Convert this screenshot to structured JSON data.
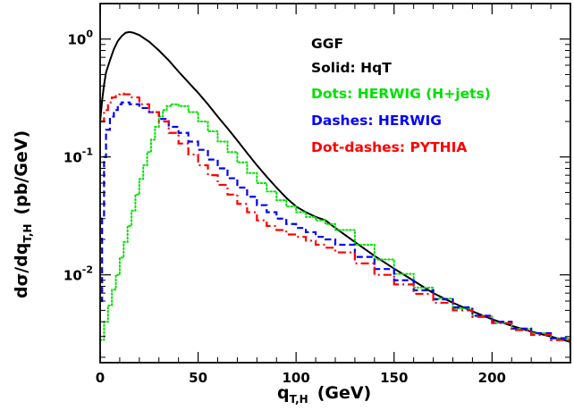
{
  "chart_data": {
    "type": "line",
    "title": "",
    "xlabel": "q",
    "xlabel_sub": "T,H",
    "xlabel_unit": "(GeV)",
    "ylabel": "dσ/dq",
    "ylabel_sub": "T,H",
    "ylabel_unit": "(pb/GeV)",
    "xlim": [
      0,
      240
    ],
    "ylim": [
      0.0018,
      2.0
    ],
    "yscale": "log",
    "grid": false,
    "x_ticks": [
      "0",
      "50",
      "100",
      "150",
      "200"
    ],
    "y_ticks": [
      {
        "base": "10",
        "exp": "0"
      },
      {
        "base": "10",
        "exp": "-1"
      },
      {
        "base": "10",
        "exp": "-2"
      }
    ],
    "legend_placement": "top-right",
    "legend": [
      {
        "text": "GGF",
        "color": "#000000"
      },
      {
        "text": "Solid: HqT",
        "color": "#000000"
      },
      {
        "text": "Dots: HERWIG (H+jets)",
        "color": "#00e000"
      },
      {
        "text": "Dashes: HERWIG",
        "color": "#0000ff"
      },
      {
        "text": "Dot-dashes: PYTHIA",
        "color": "#ff0000"
      }
    ],
    "series": [
      {
        "style": "solid",
        "color": "#000000",
        "points": [
          [
            0,
            0.2
          ],
          [
            1,
            0.3
          ],
          [
            2,
            0.41
          ],
          [
            3,
            0.52
          ],
          [
            5,
            0.66
          ],
          [
            7,
            0.82
          ],
          [
            9,
            0.96
          ],
          [
            11,
            1.06
          ],
          [
            13,
            1.13
          ],
          [
            15,
            1.15
          ],
          [
            17,
            1.13
          ],
          [
            20,
            1.08
          ],
          [
            25,
            0.95
          ],
          [
            30,
            0.8
          ],
          [
            35,
            0.66
          ],
          [
            40,
            0.53
          ],
          [
            45,
            0.43
          ],
          [
            50,
            0.35
          ],
          [
            55,
            0.28
          ],
          [
            60,
            0.22
          ],
          [
            65,
            0.175
          ],
          [
            70,
            0.138
          ],
          [
            75,
            0.108
          ],
          [
            80,
            0.085
          ],
          [
            85,
            0.068
          ],
          [
            90,
            0.055
          ],
          [
            95,
            0.045
          ],
          [
            100,
            0.038
          ],
          [
            105,
            0.034
          ],
          [
            110,
            0.031
          ],
          [
            115,
            0.029
          ],
          [
            120,
            0.025
          ],
          [
            130,
            0.019
          ],
          [
            140,
            0.0145
          ],
          [
            150,
            0.0113
          ],
          [
            160,
            0.0089
          ],
          [
            170,
            0.007
          ],
          [
            180,
            0.0058
          ],
          [
            190,
            0.0049
          ],
          [
            200,
            0.0042
          ],
          [
            210,
            0.0037
          ],
          [
            220,
            0.0033
          ],
          [
            230,
            0.003
          ],
          [
            240,
            0.0027
          ]
        ]
      },
      {
        "style": "dotted",
        "color": "#00e000",
        "points": [
          [
            0,
            0.0028
          ],
          [
            2,
            0.004
          ],
          [
            4,
            0.0055
          ],
          [
            6,
            0.0075
          ],
          [
            8,
            0.01
          ],
          [
            10,
            0.014
          ],
          [
            12,
            0.019
          ],
          [
            14,
            0.026
          ],
          [
            16,
            0.035
          ],
          [
            18,
            0.048
          ],
          [
            20,
            0.065
          ],
          [
            22,
            0.085
          ],
          [
            24,
            0.11
          ],
          [
            26,
            0.14
          ],
          [
            28,
            0.18
          ],
          [
            30,
            0.22
          ],
          [
            32,
            0.25
          ],
          [
            34,
            0.27
          ],
          [
            36,
            0.28
          ],
          [
            38,
            0.28
          ],
          [
            40,
            0.27
          ],
          [
            45,
            0.24
          ],
          [
            50,
            0.2
          ],
          [
            55,
            0.165
          ],
          [
            60,
            0.135
          ],
          [
            65,
            0.11
          ],
          [
            70,
            0.09
          ],
          [
            75,
            0.073
          ],
          [
            80,
            0.06
          ],
          [
            85,
            0.051
          ],
          [
            90,
            0.043
          ],
          [
            95,
            0.038
          ],
          [
            100,
            0.034
          ],
          [
            105,
            0.031
          ],
          [
            110,
            0.029
          ],
          [
            115,
            0.027
          ],
          [
            120,
            0.024
          ],
          [
            130,
            0.018
          ],
          [
            140,
            0.0135
          ],
          [
            150,
            0.0102
          ],
          [
            160,
            0.0078
          ],
          [
            170,
            0.0063
          ],
          [
            180,
            0.0052
          ],
          [
            190,
            0.0045
          ],
          [
            200,
            0.0039
          ],
          [
            210,
            0.0035
          ],
          [
            220,
            0.0032
          ],
          [
            230,
            0.0029
          ],
          [
            240,
            0.0026
          ]
        ]
      },
      {
        "style": "dashed",
        "color": "#0000ff",
        "points": [
          [
            0,
            0.006
          ],
          [
            1,
            0.03
          ],
          [
            2,
            0.1
          ],
          [
            3,
            0.17
          ],
          [
            5,
            0.22
          ],
          [
            7,
            0.25
          ],
          [
            9,
            0.28
          ],
          [
            11,
            0.29
          ],
          [
            13,
            0.29
          ],
          [
            15,
            0.28
          ],
          [
            20,
            0.26
          ],
          [
            25,
            0.24
          ],
          [
            30,
            0.21
          ],
          [
            35,
            0.18
          ],
          [
            40,
            0.16
          ],
          [
            45,
            0.135
          ],
          [
            50,
            0.115
          ],
          [
            55,
            0.095
          ],
          [
            60,
            0.08
          ],
          [
            65,
            0.066
          ],
          [
            70,
            0.055
          ],
          [
            75,
            0.046
          ],
          [
            80,
            0.039
          ],
          [
            85,
            0.034
          ],
          [
            90,
            0.03
          ],
          [
            95,
            0.027
          ],
          [
            100,
            0.025
          ],
          [
            105,
            0.023
          ],
          [
            110,
            0.021
          ],
          [
            115,
            0.02
          ],
          [
            120,
            0.018
          ],
          [
            130,
            0.0142
          ],
          [
            140,
            0.0112
          ],
          [
            150,
            0.009
          ],
          [
            160,
            0.0074
          ],
          [
            170,
            0.0062
          ],
          [
            180,
            0.0053
          ],
          [
            190,
            0.0045
          ],
          [
            200,
            0.004
          ],
          [
            210,
            0.0035
          ],
          [
            220,
            0.0032
          ],
          [
            230,
            0.0029
          ],
          [
            240,
            0.0024
          ]
        ]
      },
      {
        "style": "dashdot",
        "color": "#ff0000",
        "points": [
          [
            0,
            0.2
          ],
          [
            2,
            0.25
          ],
          [
            4,
            0.29
          ],
          [
            6,
            0.32
          ],
          [
            8,
            0.34
          ],
          [
            10,
            0.345
          ],
          [
            12,
            0.34
          ],
          [
            15,
            0.32
          ],
          [
            20,
            0.28
          ],
          [
            25,
            0.24
          ],
          [
            30,
            0.2
          ],
          [
            35,
            0.16
          ],
          [
            40,
            0.13
          ],
          [
            45,
            0.105
          ],
          [
            50,
            0.085
          ],
          [
            55,
            0.07
          ],
          [
            60,
            0.058
          ],
          [
            65,
            0.048
          ],
          [
            70,
            0.04
          ],
          [
            75,
            0.034
          ],
          [
            80,
            0.029
          ],
          [
            85,
            0.026
          ],
          [
            90,
            0.024
          ],
          [
            95,
            0.022
          ],
          [
            100,
            0.021
          ],
          [
            105,
            0.0195
          ],
          [
            110,
            0.018
          ],
          [
            115,
            0.017
          ],
          [
            120,
            0.0155
          ],
          [
            130,
            0.0125
          ],
          [
            140,
            0.01
          ],
          [
            150,
            0.0083
          ],
          [
            160,
            0.0069
          ],
          [
            170,
            0.0058
          ],
          [
            180,
            0.005
          ],
          [
            190,
            0.0044
          ],
          [
            200,
            0.0039
          ],
          [
            210,
            0.0034
          ],
          [
            220,
            0.0031
          ],
          [
            230,
            0.0028
          ],
          [
            240,
            0.0024
          ]
        ]
      }
    ]
  }
}
